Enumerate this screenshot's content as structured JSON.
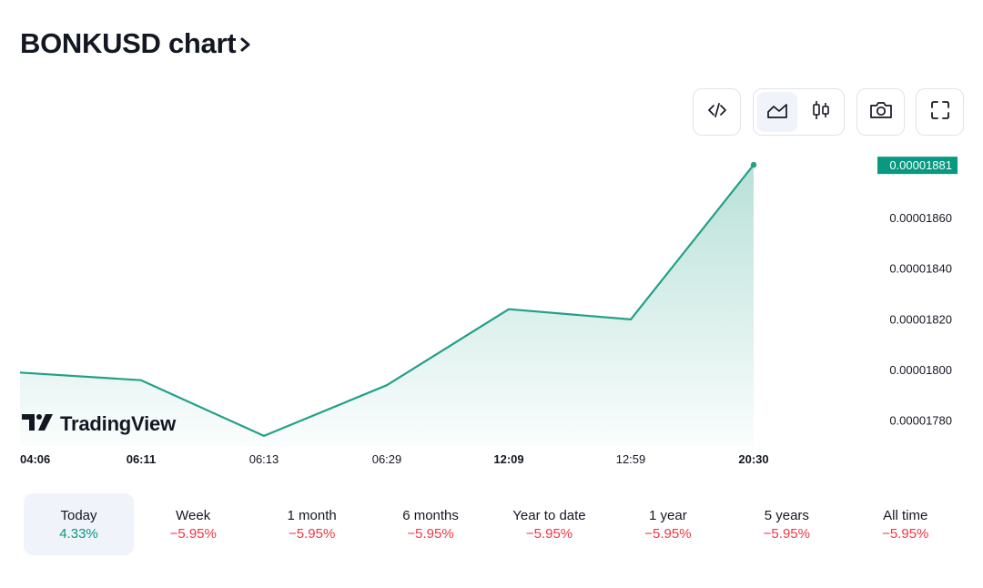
{
  "header": {
    "title": "BONKUSD chart",
    "chevron_icon": "chevron-right-icon"
  },
  "toolbar": {
    "embed_icon": "code-icon",
    "area_chart_icon": "area-chart-icon",
    "candles_icon": "candlestick-icon",
    "snapshot_icon": "camera-icon",
    "fullscreen_icon": "fullscreen-icon",
    "active_chart_type": "area"
  },
  "chart_data": {
    "type": "area",
    "x": [
      "04:06",
      "06:11",
      "06:13",
      "06:29",
      "12:09",
      "12:59",
      "20:30"
    ],
    "x_bold": [
      true,
      true,
      false,
      false,
      true,
      false,
      true
    ],
    "y": [
      1.799e-05,
      1.796e-05,
      1.774e-05,
      1.794e-05,
      1.824e-05,
      1.82e-05,
      1.881e-05
    ],
    "ylim": [
      1.77e-05,
      1.885e-05
    ],
    "y_ticks": [
      "0.00001780",
      "0.00001800",
      "0.00001820",
      "0.00001840",
      "0.00001860"
    ],
    "last_price_label": "0.00001881",
    "line_color": "#22a087",
    "last_price_color": "#089981",
    "grid": false,
    "watermark": "TradingView"
  },
  "periods": [
    {
      "label": "Today",
      "value": "4.33%",
      "trend": "up",
      "active": true
    },
    {
      "label": "Week",
      "value": "−5.95%",
      "trend": "down",
      "active": false
    },
    {
      "label": "1 month",
      "value": "−5.95%",
      "trend": "down",
      "active": false
    },
    {
      "label": "6 months",
      "value": "−5.95%",
      "trend": "down",
      "active": false
    },
    {
      "label": "Year to date",
      "value": "−5.95%",
      "trend": "down",
      "active": false
    },
    {
      "label": "1 year",
      "value": "−5.95%",
      "trend": "down",
      "active": false
    },
    {
      "label": "5 years",
      "value": "−5.95%",
      "trend": "down",
      "active": false
    },
    {
      "label": "All time",
      "value": "−5.95%",
      "trend": "down",
      "active": false
    }
  ]
}
